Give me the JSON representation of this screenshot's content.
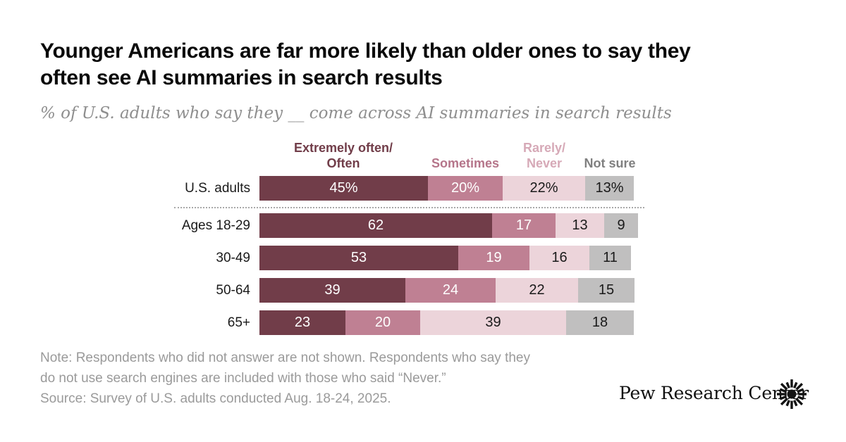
{
  "title": {
    "lines": [
      "Younger Americans are far more likely than older ones to say they",
      "often see AI summaries in search results"
    ]
  },
  "subtitle": "% of U.S. adults who say they __ come across AI summaries in search results",
  "legend": [
    {
      "lines": [
        "Extremely often/",
        "Often"
      ],
      "color": "#713d49"
    },
    {
      "lines": [
        "Sometimes"
      ],
      "color": "#b5758a"
    },
    {
      "lines": [
        "Rarely/",
        "Never"
      ],
      "color": "#d6a9b7"
    },
    {
      "lines": [
        "Not sure"
      ],
      "color": "#808080"
    }
  ],
  "chart_data": {
    "type": "bar",
    "orientation": "horizontal-stacked",
    "categories": [
      "U.S. adults",
      "Ages 18-29",
      "30-49",
      "50-64",
      "65+"
    ],
    "series": [
      {
        "key": "extremely-often",
        "name": "Extremely often/Often",
        "color": "#713d49",
        "label_color": "#ffffff",
        "values": [
          45,
          62,
          53,
          39,
          23
        ]
      },
      {
        "key": "sometimes",
        "name": "Sometimes",
        "color": "#bf8093",
        "label_color": "#ffffff",
        "values": [
          20,
          17,
          19,
          24,
          20
        ]
      },
      {
        "key": "rarely-never",
        "name": "Rarely/Never",
        "color": "#ecd4da",
        "label_color": "#1a1a1a",
        "values": [
          22,
          13,
          16,
          22,
          39
        ]
      },
      {
        "key": "not-sure",
        "name": "Not sure",
        "color": "#c0bfbf",
        "label_color": "#1a1a1a",
        "values": [
          13,
          9,
          11,
          15,
          18
        ]
      }
    ],
    "first_row_value_suffix": "%",
    "unit": "percent of U.S. adults",
    "axis": "none (values labeled on bars)",
    "legend_position": "top"
  },
  "note": {
    "lines": [
      "Note: Respondents who did not answer are not shown. Respondents who say they",
      "do not use search engines are included with those who said “Never.”",
      "Source: Survey of U.S. adults conducted Aug. 18-24, 2025."
    ]
  },
  "branding": {
    "name": "Pew Research Center"
  }
}
